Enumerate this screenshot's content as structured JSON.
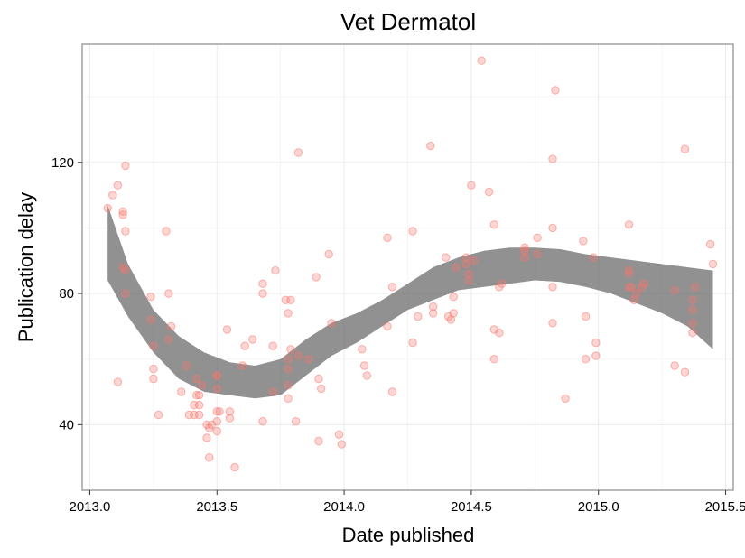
{
  "chart_data": {
    "type": "scatter",
    "title": "Vet Dermatol",
    "xlabel": "Date published",
    "ylabel": "Publication delay",
    "xlim": [
      2012.97,
      2015.53
    ],
    "ylim": [
      20,
      156
    ],
    "x_ticks": [
      2013.0,
      2013.5,
      2014.0,
      2014.5,
      2015.0,
      2015.5
    ],
    "x_tick_labels": [
      "2013.0",
      "2013.5",
      "2014.0",
      "2014.5",
      "2015.0",
      "2015.5"
    ],
    "y_ticks": [
      40,
      80,
      120
    ],
    "y_tick_labels": [
      "40",
      "80",
      "120"
    ],
    "grid": true,
    "legend": "none",
    "point_color": "#f8766d",
    "band_color": "#666666",
    "points": [
      [
        2013.07,
        106
      ],
      [
        2013.09,
        110
      ],
      [
        2013.11,
        113
      ],
      [
        2013.11,
        53
      ],
      [
        2013.13,
        105
      ],
      [
        2013.13,
        104
      ],
      [
        2013.14,
        119
      ],
      [
        2013.14,
        99
      ],
      [
        2013.13,
        88
      ],
      [
        2013.14,
        87
      ],
      [
        2013.14,
        80
      ],
      [
        2013.24,
        79
      ],
      [
        2013.24,
        72
      ],
      [
        2013.25,
        64
      ],
      [
        2013.25,
        57
      ],
      [
        2013.25,
        54
      ],
      [
        2013.27,
        43
      ],
      [
        2013.3,
        99
      ],
      [
        2013.31,
        80
      ],
      [
        2013.32,
        70
      ],
      [
        2013.31,
        66
      ],
      [
        2013.36,
        50
      ],
      [
        2013.38,
        58
      ],
      [
        2013.39,
        43
      ],
      [
        2013.41,
        43
      ],
      [
        2013.41,
        46
      ],
      [
        2013.42,
        54
      ],
      [
        2013.42,
        49
      ],
      [
        2013.43,
        49
      ],
      [
        2013.43,
        46
      ],
      [
        2013.43,
        43
      ],
      [
        2013.44,
        52
      ],
      [
        2013.46,
        40
      ],
      [
        2013.46,
        36
      ],
      [
        2013.47,
        30
      ],
      [
        2013.47,
        39
      ],
      [
        2013.48,
        40
      ],
      [
        2013.5,
        55
      ],
      [
        2013.5,
        55
      ],
      [
        2013.5,
        51
      ],
      [
        2013.5,
        44
      ],
      [
        2013.5,
        41
      ],
      [
        2013.5,
        38
      ],
      [
        2013.51,
        44
      ],
      [
        2013.54,
        69
      ],
      [
        2013.55,
        44
      ],
      [
        2013.55,
        42
      ],
      [
        2013.57,
        27
      ],
      [
        2013.6,
        58
      ],
      [
        2013.61,
        64
      ],
      [
        2013.64,
        66
      ],
      [
        2013.68,
        83
      ],
      [
        2013.68,
        80
      ],
      [
        2013.68,
        41
      ],
      [
        2013.72,
        64
      ],
      [
        2013.72,
        50
      ],
      [
        2013.73,
        87
      ],
      [
        2013.77,
        78
      ],
      [
        2013.78,
        74
      ],
      [
        2013.78,
        60
      ],
      [
        2013.78,
        57
      ],
      [
        2013.78,
        52
      ],
      [
        2013.78,
        48
      ],
      [
        2013.79,
        78
      ],
      [
        2013.79,
        63
      ],
      [
        2013.81,
        41
      ],
      [
        2013.82,
        123
      ],
      [
        2013.82,
        61
      ],
      [
        2013.86,
        60
      ],
      [
        2013.89,
        85
      ],
      [
        2013.9,
        54
      ],
      [
        2013.9,
        35
      ],
      [
        2013.91,
        51
      ],
      [
        2013.94,
        92
      ],
      [
        2013.95,
        71
      ],
      [
        2013.98,
        37
      ],
      [
        2013.99,
        34
      ],
      [
        2014.07,
        63
      ],
      [
        2014.08,
        58
      ],
      [
        2014.09,
        55
      ],
      [
        2014.17,
        70
      ],
      [
        2014.17,
        97
      ],
      [
        2014.19,
        50
      ],
      [
        2014.19,
        82
      ],
      [
        2014.27,
        99
      ],
      [
        2014.27,
        65
      ],
      [
        2014.29,
        73
      ],
      [
        2014.34,
        125
      ],
      [
        2014.35,
        74
      ],
      [
        2014.35,
        76
      ],
      [
        2014.4,
        91
      ],
      [
        2014.41,
        73
      ],
      [
        2014.42,
        72
      ],
      [
        2014.43,
        74
      ],
      [
        2014.43,
        79
      ],
      [
        2014.44,
        88
      ],
      [
        2014.48,
        91
      ],
      [
        2014.48,
        89
      ],
      [
        2014.49,
        86
      ],
      [
        2014.49,
        84
      ],
      [
        2014.5,
        113
      ],
      [
        2014.51,
        90
      ],
      [
        2014.54,
        151
      ],
      [
        2014.57,
        111
      ],
      [
        2014.59,
        101
      ],
      [
        2014.59,
        69
      ],
      [
        2014.59,
        60
      ],
      [
        2014.61,
        68
      ],
      [
        2014.61,
        82
      ],
      [
        2014.62,
        83
      ],
      [
        2014.71,
        94
      ],
      [
        2014.71,
        93
      ],
      [
        2014.71,
        91
      ],
      [
        2014.76,
        97
      ],
      [
        2014.76,
        92
      ],
      [
        2014.82,
        121
      ],
      [
        2014.82,
        82
      ],
      [
        2014.82,
        100
      ],
      [
        2014.82,
        71
      ],
      [
        2014.83,
        142
      ],
      [
        2014.87,
        48
      ],
      [
        2014.94,
        96
      ],
      [
        2014.95,
        73
      ],
      [
        2014.95,
        60
      ],
      [
        2014.98,
        91
      ],
      [
        2014.99,
        65
      ],
      [
        2014.99,
        61
      ],
      [
        2015.12,
        101
      ],
      [
        2015.12,
        87
      ],
      [
        2015.12,
        86
      ],
      [
        2015.12,
        82
      ],
      [
        2015.13,
        82
      ],
      [
        2015.14,
        78
      ],
      [
        2015.15,
        80
      ],
      [
        2015.17,
        82
      ],
      [
        2015.18,
        83
      ],
      [
        2015.3,
        58
      ],
      [
        2015.3,
        81
      ],
      [
        2015.34,
        124
      ],
      [
        2015.34,
        56
      ],
      [
        2015.37,
        78
      ],
      [
        2015.37,
        75
      ],
      [
        2015.37,
        71
      ],
      [
        2015.37,
        68
      ],
      [
        2015.38,
        82
      ],
      [
        2015.44,
        95
      ],
      [
        2015.45,
        89
      ]
    ],
    "band": {
      "x": [
        2013.07,
        2013.15,
        2013.25,
        2013.35,
        2013.45,
        2013.55,
        2013.65,
        2013.75,
        2013.85,
        2013.95,
        2014.05,
        2014.15,
        2014.25,
        2014.35,
        2014.45,
        2014.55,
        2014.65,
        2014.75,
        2014.85,
        2014.95,
        2015.05,
        2015.15,
        2015.25,
        2015.35,
        2015.45
      ],
      "lower": [
        84,
        73,
        62,
        54,
        50,
        49,
        48,
        49,
        55,
        61,
        65,
        70,
        75,
        78,
        81,
        82,
        83,
        84,
        83.5,
        82,
        80,
        77,
        74,
        70,
        63
      ],
      "upper": [
        107,
        89,
        75,
        67,
        62,
        59,
        58,
        60,
        66,
        71,
        74,
        78,
        83,
        88,
        91,
        93,
        94,
        94,
        93.5,
        92,
        91,
        90,
        89,
        88,
        87
      ]
    }
  }
}
